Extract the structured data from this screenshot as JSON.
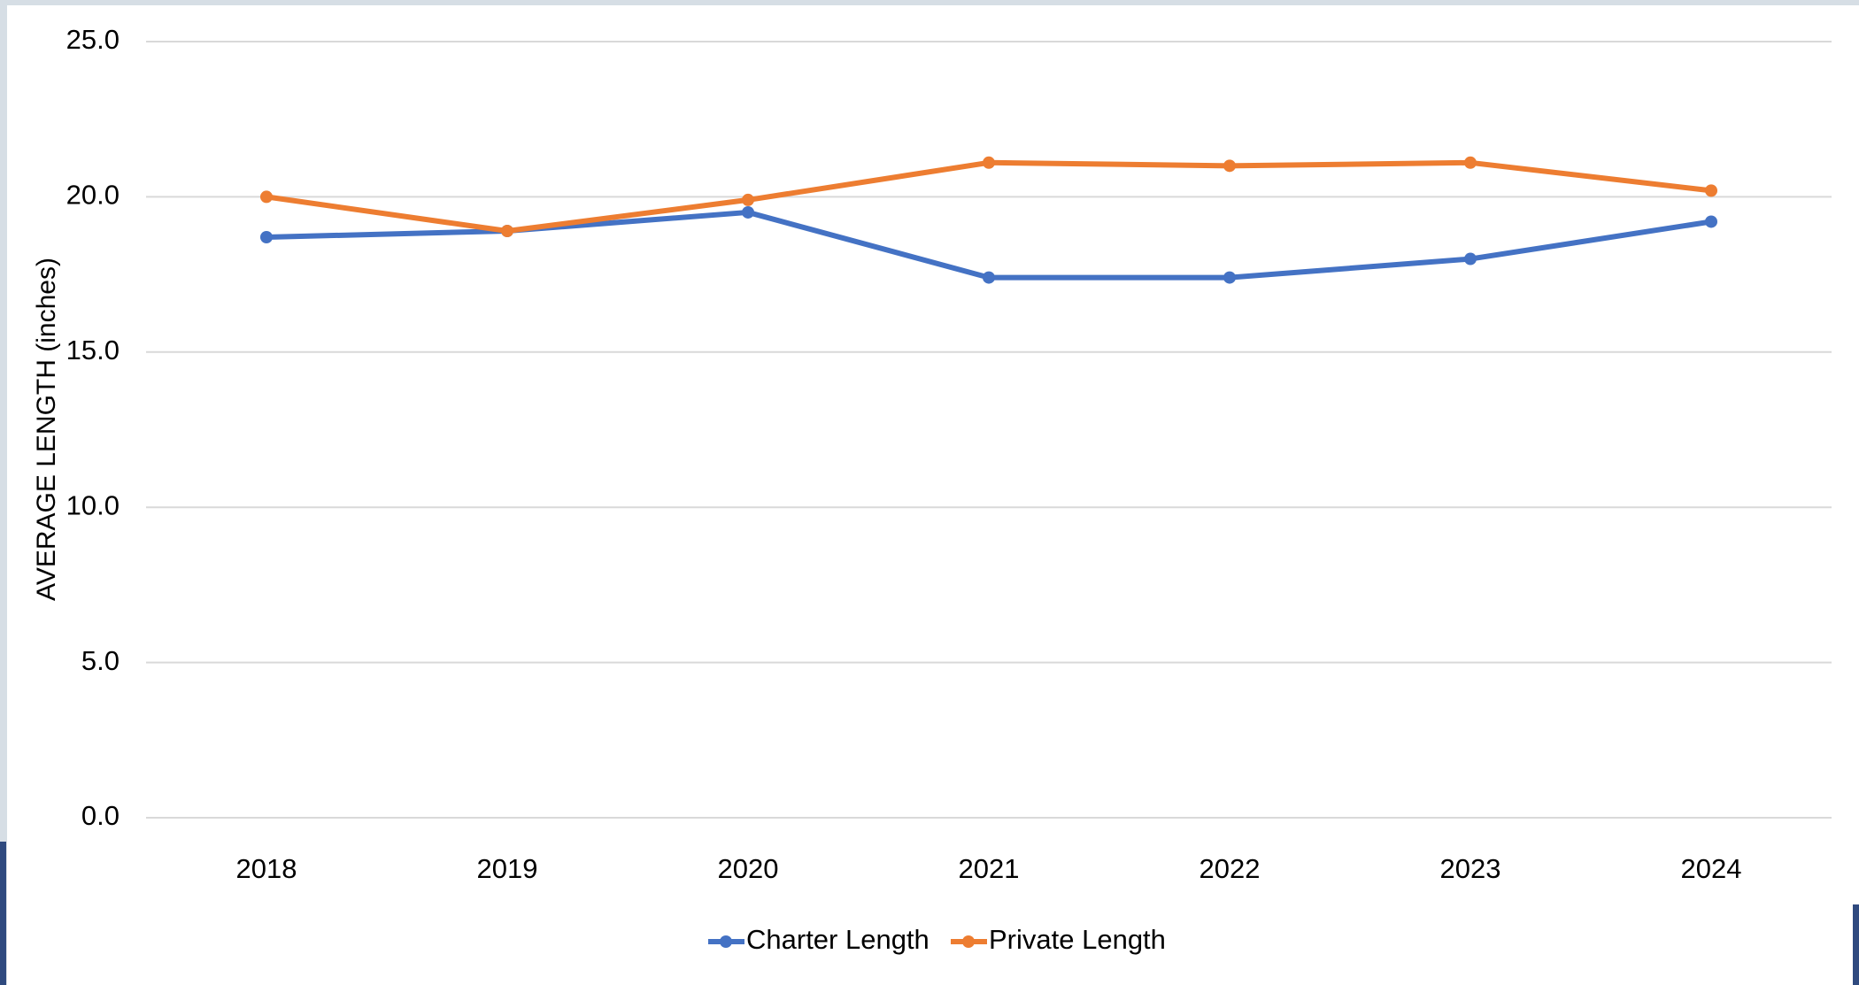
{
  "chart_data": {
    "type": "line",
    "y_label": "AVERAGE LENGTH (inches)",
    "categories": [
      "2018",
      "2019",
      "2020",
      "2021",
      "2022",
      "2023",
      "2024"
    ],
    "series": [
      {
        "name": "Charter Length",
        "color": "#4472c4",
        "values": [
          18.7,
          18.9,
          19.5,
          17.4,
          17.4,
          18.0,
          19.2
        ]
      },
      {
        "name": "Private Length",
        "color": "#ed7d31",
        "values": [
          20.0,
          18.9,
          19.9,
          21.1,
          21.0,
          21.1,
          20.2
        ]
      }
    ],
    "ylim": [
      0,
      25
    ],
    "yticks": [
      {
        "value": 0,
        "label": "0.0"
      },
      {
        "value": 5,
        "label": "5.0"
      },
      {
        "value": 10,
        "label": "10.0"
      },
      {
        "value": 15,
        "label": "15.0"
      },
      {
        "value": 20,
        "label": "20.0"
      },
      {
        "value": 25,
        "label": "25.0"
      }
    ],
    "grid": true,
    "legend": "bottom"
  }
}
